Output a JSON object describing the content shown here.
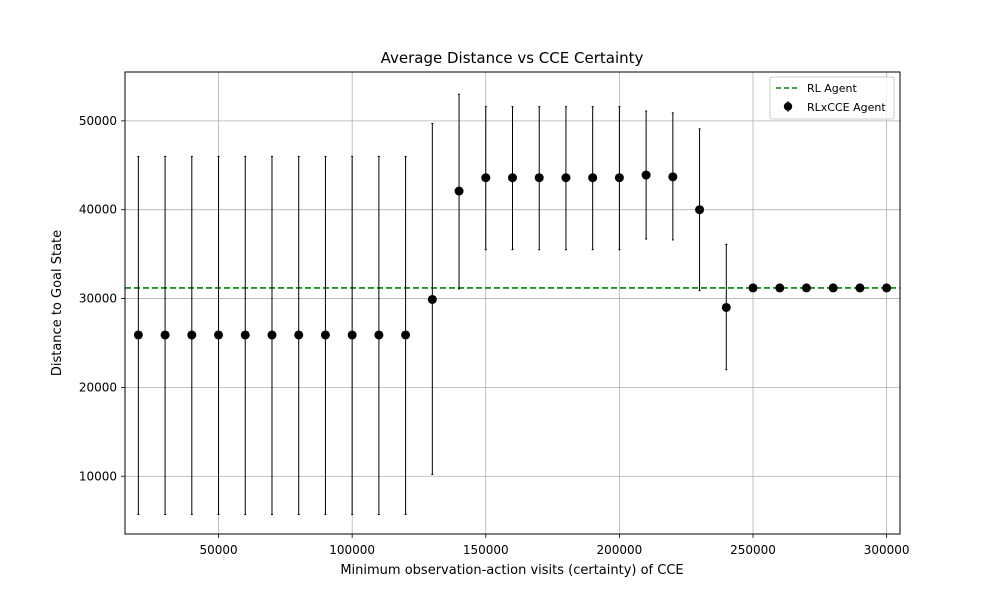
{
  "chart_data": {
    "type": "scatter",
    "title": "Average Distance vs CCE Certainty",
    "xlabel": "Minimum observation-action visits (certainty) of CCE",
    "ylabel": "Distance to Goal State",
    "xlim": [
      15000,
      305000
    ],
    "ylim": [
      3500,
      55500
    ],
    "xticks": [
      50000,
      100000,
      150000,
      200000,
      250000,
      300000
    ],
    "yticks": [
      10000,
      20000,
      30000,
      40000,
      50000
    ],
    "grid": true,
    "legend_position": "top-right",
    "series": [
      {
        "name": "RL Agent",
        "kind": "hline",
        "value": 31200,
        "color": "#008000",
        "style": "dashed"
      },
      {
        "name": "RLxCCE Agent",
        "kind": "errorbar",
        "color": "#000000",
        "x": [
          20000,
          30000,
          40000,
          50000,
          60000,
          70000,
          80000,
          90000,
          100000,
          110000,
          120000,
          130000,
          140000,
          150000,
          160000,
          170000,
          180000,
          190000,
          200000,
          210000,
          220000,
          230000,
          240000,
          250000,
          260000,
          270000,
          280000,
          290000,
          300000
        ],
        "y": [
          25900,
          25900,
          25900,
          25900,
          25900,
          25900,
          25900,
          25900,
          25900,
          25900,
          25900,
          29900,
          42100,
          43600,
          43600,
          43600,
          43600,
          43600,
          43600,
          43900,
          43700,
          40000,
          29000,
          31200,
          31200,
          31200,
          31200,
          31200,
          31200
        ],
        "yerr_low": [
          5700,
          5700,
          5700,
          5700,
          5700,
          5700,
          5700,
          5700,
          5700,
          5700,
          5700,
          10200,
          31100,
          35500,
          35500,
          35500,
          35500,
          35500,
          35500,
          36700,
          36600,
          30900,
          22000,
          31200,
          31200,
          31200,
          31200,
          31200,
          31200
        ],
        "yerr_high": [
          46000,
          46000,
          46000,
          46000,
          46000,
          46000,
          46000,
          46000,
          46000,
          46000,
          46000,
          49700,
          53000,
          51600,
          51600,
          51600,
          51600,
          51600,
          51600,
          51100,
          50900,
          49100,
          36100,
          31200,
          31200,
          31200,
          31200,
          31200,
          31200
        ]
      }
    ]
  }
}
